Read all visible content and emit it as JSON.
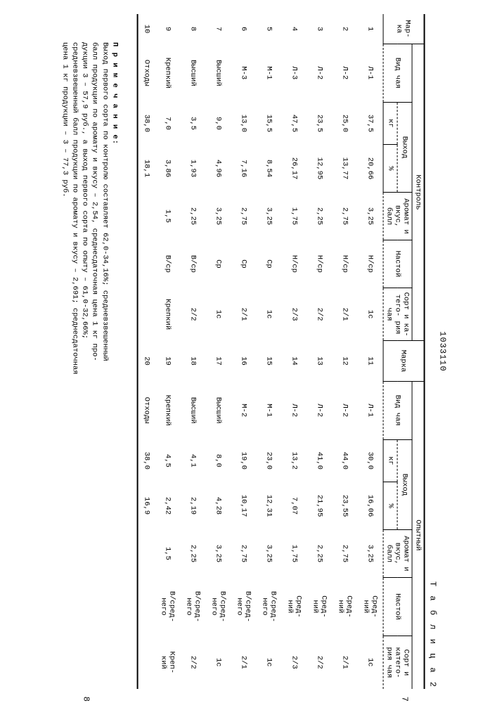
{
  "document_number": "1033110",
  "table_label": "Т а б л и ц а  2",
  "margin_left": "7",
  "margin_right": "8",
  "headers": {
    "marka": "Мар-\nка",
    "kontrol": "Контроль",
    "opyt": "Опытный",
    "vid_chaya": "Вид чая",
    "vyhod": "Выход",
    "kg": "кг",
    "pct": "%",
    "aromat": "Аромат\nи вкус,\nбалл",
    "nastoy": "Настой",
    "sort": "Сорт\nи ка-\nтего-\nрия\nчая",
    "marka2": "Марка",
    "vid_chaya2": "Вид чая",
    "sort2": "Сорт и\nкатего-\nрия чая"
  },
  "rows": [
    {
      "n": "1",
      "vid": "Л-1",
      "kg": "37,5",
      "pct": "20,66",
      "ar": "3,25",
      "nas": "Н/ср",
      "sort": "1с",
      "m": "11",
      "vid2": "Л-1",
      "kg2": "30,0",
      "pct2": "16,06",
      "ar2": "3,25",
      "nas2": "Сред-\nний",
      "sort2": "1с"
    },
    {
      "n": "2",
      "vid": "Л-2",
      "kg": "25,0",
      "pct": "13,77",
      "ar": "2,75",
      "nas": "Н/ср",
      "sort": "2/1",
      "m": "12",
      "vid2": "Л-2",
      "kg2": "44,0",
      "pct2": "23,55",
      "ar2": "2,75",
      "nas2": "Сред-\nний",
      "sort2": "2/1"
    },
    {
      "n": "3",
      "vid": "Л-2",
      "kg": "23,5",
      "pct": "12,95",
      "ar": "2,25",
      "nas": "Н/ср",
      "sort": "2/2",
      "m": "13",
      "vid2": "Л-2",
      "kg2": "41,0",
      "pct2": "21,95",
      "ar2": "2,25",
      "nas2": "Сред-\nний",
      "sort2": "2/2"
    },
    {
      "n": "4",
      "vid": "Л-3",
      "kg": "47,5",
      "pct": "26,17",
      "ar": "1,75",
      "nas": "Н/ср",
      "sort": "2/3",
      "m": "14",
      "vid2": "Л-2",
      "kg2": "13,2",
      "pct2": "7,07",
      "ar2": "1,75",
      "nas2": "Сред-\nний",
      "sort2": "2/3"
    },
    {
      "n": "5",
      "vid": "М-1",
      "kg": "15,5",
      "pct": "8,54",
      "ar": "3,25",
      "nas": "Ср",
      "sort": "1с",
      "m": "15",
      "vid2": "М-1",
      "kg2": "23,0",
      "pct2": "12,31",
      "ar2": "3,25",
      "nas2": "В/сред-\nнего",
      "sort2": "1с"
    },
    {
      "n": "6",
      "vid": "М-3",
      "kg": "13,0",
      "pct": "7,16",
      "ar": "2,75",
      "nas": "Ср",
      "sort": "2/1",
      "m": "16",
      "vid2": "М-2",
      "kg2": "19,0",
      "pct2": "10,17",
      "ar2": "2,75",
      "nas2": "В/сред-\nнего",
      "sort2": "2/1"
    },
    {
      "n": "7",
      "vid": "Высший",
      "kg": "9,0",
      "pct": "4,96",
      "ar": "3,25",
      "nas": "Ср",
      "sort": "1с",
      "m": "17",
      "vid2": "Высший",
      "kg2": "8,0",
      "pct2": "4,28",
      "ar2": "3,25",
      "nas2": "В/сред-\nнего",
      "sort2": "1с"
    },
    {
      "n": "8",
      "vid": "Высший",
      "kg": "3,5",
      "pct": "1,93",
      "ar": "2,25",
      "nas": "В/ср",
      "sort": "2/2",
      "m": "18",
      "vid2": "Высший",
      "kg2": "4,1",
      "pct2": "2,19",
      "ar2": "2,25",
      "nas2": "В/сред-\nнего",
      "sort2": "2/2"
    },
    {
      "n": "9",
      "vid": "Крепкий",
      "kg": "7,0",
      "pct": "3,86",
      "ar": "1,5",
      "nas": "В/ср",
      "sort": "Крепкий",
      "m": "19",
      "vid2": "Крепкий",
      "kg2": "4,5",
      "pct2": "2,42",
      "ar2": "1,5",
      "nas2": "В/сред-\nнего",
      "sort2": "Креп-\nкий"
    },
    {
      "n": "10",
      "vid": "Отходы",
      "kg": "38,0",
      "pct": "18,1",
      "ar": "",
      "nas": "",
      "sort": "",
      "m": "20",
      "vid2": "Отходы",
      "kg2": "38,0",
      "pct2": "16,9",
      "ar2": "",
      "nas2": "",
      "sort2": ""
    }
  ],
  "note_label": "П р и м е ч а н и е:",
  "note_text": "Выход первого сорта по контролю составляет 62,0-34,16%; средневзвешенный\nбалл продукции по аромату и вкусу – 2,54, среднесдаточная цена 1 кг про-\nдукции 3 – 57,9 руб., а выход первого сорта по опыту – 61,0-32,66%;\nсредневзвешенный балл продукции по аромату и вкусу – 2,691; среднесдаточная\nцена 1 кг продукции – 3 – 77,3 руб."
}
